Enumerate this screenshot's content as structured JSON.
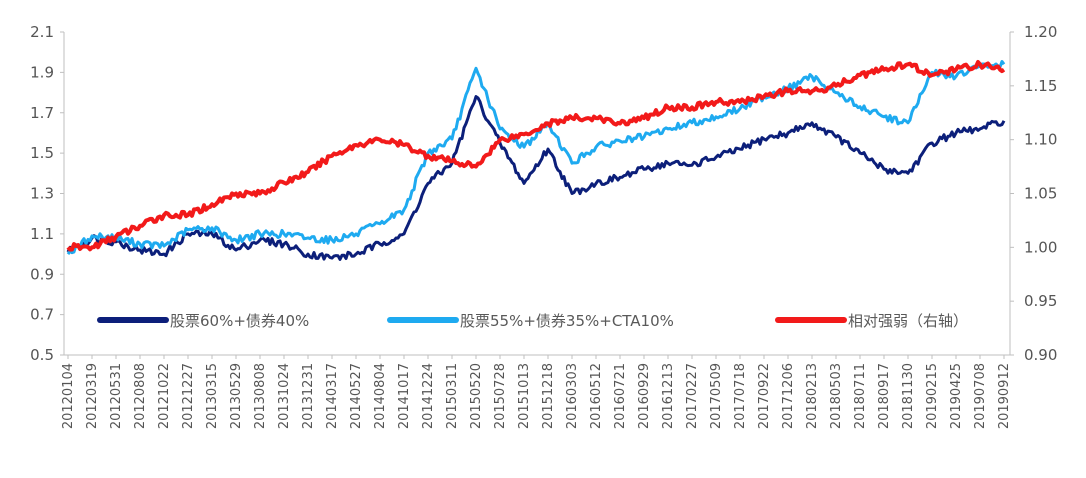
{
  "chart_data": {
    "type": "line",
    "title": "",
    "xlabel": "",
    "ylabel": "",
    "ylim_left": [
      0.5,
      2.1
    ],
    "ylim_right": [
      0.9,
      1.2
    ],
    "left_ticks": [
      "0.5",
      "0.7",
      "0.9",
      "1.1",
      "1.3",
      "1.5",
      "1.7",
      "1.9",
      "2.1"
    ],
    "right_ticks": [
      "0.90",
      "0.95",
      "1.00",
      "1.05",
      "1.10",
      "1.15",
      "1.20"
    ],
    "categories": [
      "20120104",
      "20120319",
      "20120531",
      "20120808",
      "20121022",
      "20121227",
      "20130315",
      "20130529",
      "20130808",
      "20131024",
      "20131231",
      "20140317",
      "20140527",
      "20140804",
      "20141017",
      "20141224",
      "20150311",
      "20150520",
      "20150728",
      "20151013",
      "20151218",
      "20160303",
      "20160512",
      "20160721",
      "20160929",
      "20161213",
      "20170227",
      "20170509",
      "20170718",
      "20170922",
      "20171206",
      "20180213",
      "20180503",
      "20180711",
      "20180917",
      "20181130",
      "20190215",
      "20190425",
      "20190708",
      "20190912"
    ],
    "legend_position": "bottom-inside",
    "series": [
      {
        "name": "股票60%+债券40%",
        "axis": "left",
        "color": "#0c1f7a",
        "values": [
          1.01,
          1.08,
          1.06,
          1.02,
          1.0,
          1.1,
          1.1,
          1.02,
          1.07,
          1.05,
          1.0,
          0.98,
          1.0,
          1.05,
          1.1,
          1.35,
          1.45,
          1.78,
          1.55,
          1.35,
          1.52,
          1.3,
          1.35,
          1.38,
          1.42,
          1.45,
          1.44,
          1.48,
          1.52,
          1.57,
          1.6,
          1.65,
          1.58,
          1.5,
          1.42,
          1.4,
          1.55,
          1.6,
          1.62,
          1.66
        ]
      },
      {
        "name": "股票55%+债券35%+CTA10%",
        "axis": "left",
        "color": "#1eaaf0",
        "values": [
          1.0,
          1.09,
          1.08,
          1.05,
          1.04,
          1.12,
          1.13,
          1.07,
          1.1,
          1.1,
          1.08,
          1.07,
          1.1,
          1.15,
          1.22,
          1.5,
          1.57,
          1.92,
          1.62,
          1.53,
          1.65,
          1.45,
          1.53,
          1.56,
          1.58,
          1.62,
          1.65,
          1.68,
          1.72,
          1.78,
          1.82,
          1.88,
          1.8,
          1.73,
          1.68,
          1.65,
          1.9,
          1.88,
          1.93,
          1.94
        ]
      },
      {
        "name": "相对强弱（右轴）",
        "axis": "right",
        "color": "#f21a1a",
        "values": [
          1.0,
          1.0,
          1.01,
          1.02,
          1.03,
          1.03,
          1.04,
          1.05,
          1.05,
          1.06,
          1.07,
          1.085,
          1.095,
          1.1,
          1.095,
          1.085,
          1.08,
          1.075,
          1.1,
          1.105,
          1.115,
          1.12,
          1.12,
          1.115,
          1.12,
          1.13,
          1.13,
          1.135,
          1.135,
          1.14,
          1.145,
          1.145,
          1.15,
          1.16,
          1.165,
          1.17,
          1.16,
          1.165,
          1.17,
          1.165
        ]
      }
    ]
  }
}
